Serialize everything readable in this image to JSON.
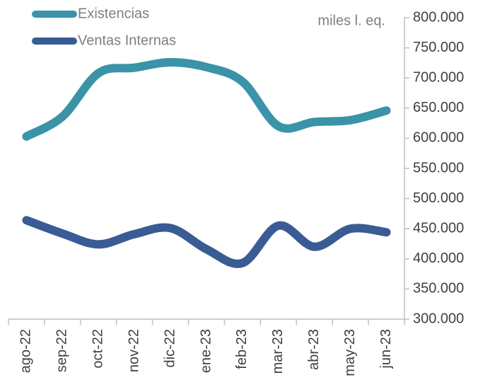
{
  "chart_data": {
    "type": "line",
    "y_axis_label": "miles l. eq.",
    "categories": [
      "ago-22",
      "sep-22",
      "oct-22",
      "nov-22",
      "dic-22",
      "ene-23",
      "feb-23",
      "mar-23",
      "abr-23",
      "may-23",
      "jun-23"
    ],
    "series": [
      {
        "name": "Existencias",
        "color": "#3b93a8",
        "values": [
          603000,
          636000,
          708000,
          717000,
          726000,
          718000,
          694000,
          620000,
          627000,
          630000,
          646000
        ]
      },
      {
        "name": "Ventas Internas",
        "color": "#3a5c94",
        "values": [
          464000,
          442000,
          424000,
          441000,
          451000,
          416000,
          393000,
          455000,
          420000,
          450000,
          444000
        ]
      }
    ],
    "ylim": [
      300000,
      800000
    ],
    "yticks": [
      {
        "value": 300000,
        "label": "300.000"
      },
      {
        "value": 350000,
        "label": "350.000"
      },
      {
        "value": 400000,
        "label": "400.000"
      },
      {
        "value": 450000,
        "label": "450.000"
      },
      {
        "value": 500000,
        "label": "500.000"
      },
      {
        "value": 550000,
        "label": "550.000"
      },
      {
        "value": 600000,
        "label": "600.000"
      },
      {
        "value": 650000,
        "label": "650.000"
      },
      {
        "value": 700000,
        "label": "700.000"
      },
      {
        "value": 750000,
        "label": "750.000"
      },
      {
        "value": 800000,
        "label": "800.000"
      }
    ],
    "legend": "top-left",
    "grid": false
  }
}
